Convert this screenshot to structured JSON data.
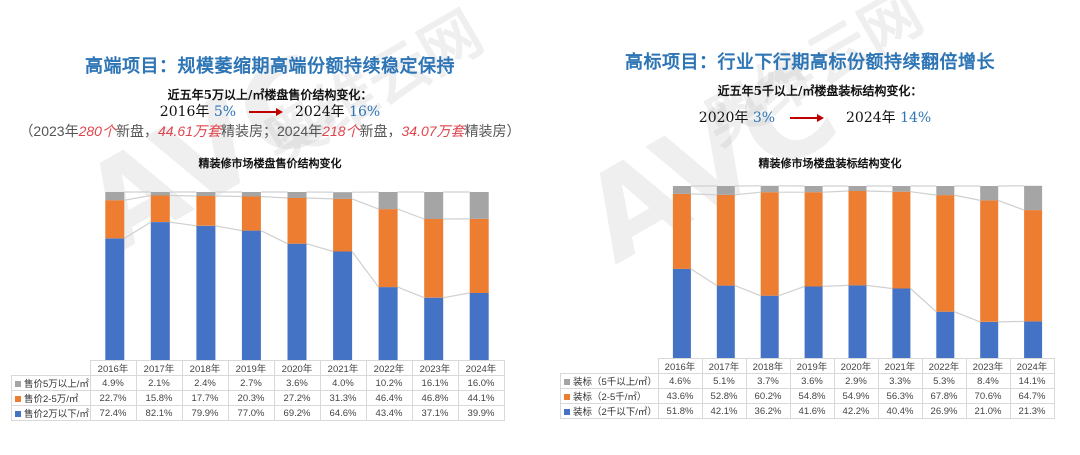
{
  "watermark": {
    "logo": "AVC",
    "text": "奥维云网",
    "sub": "ALL VIEW CLOUD"
  },
  "left": {
    "headline": "高端项目：规模萎缩期高端份额持续稳定保持",
    "question": "近五年5万以上/㎡楼盘售价结构变化：",
    "from_year": "2016年",
    "from_pct": "5%",
    "to_year": "2024年",
    "to_pct": "16%",
    "note": {
      "open": "（2023年",
      "n1": "280个",
      "t1": "新盘，",
      "n2": "44.61万套",
      "t2": "精装房；2024年",
      "n3": "218个",
      "t3": "新盘，",
      "n4": "34.07万套",
      "t4": "精装房）"
    },
    "chart_title": "精装修市场楼盘售价结构变化"
  },
  "right": {
    "headline": "高标项目：行业下行期高标份额持续翻倍增长",
    "question": "近五年5千以上/㎡楼盘装标结构变化：",
    "from_year": "2020年",
    "from_pct": "3%",
    "to_year": "2024年",
    "to_pct": "14%",
    "chart_title": "精装修市场楼盘装标结构变化"
  },
  "colors": {
    "gray": "#a5a5a5",
    "orange": "#ed7d31",
    "blue": "#4472c4",
    "connector": "#d0d0d0"
  },
  "chart_data": [
    {
      "type": "bar",
      "stacked": true,
      "percent_stacked": true,
      "title": "精装修市场楼盘售价结构变化",
      "categories": [
        "2016年",
        "2017年",
        "2018年",
        "2019年",
        "2020年",
        "2021年",
        "2022年",
        "2023年",
        "2024年"
      ],
      "series": [
        {
          "name": "售价5万以上/㎡",
          "color": "#a5a5a5",
          "values": [
            "4.9%",
            "2.1%",
            "2.4%",
            "2.7%",
            "3.6%",
            "4.0%",
            "10.2%",
            "16.1%",
            "16.0%"
          ]
        },
        {
          "name": "售价2-5万/㎡",
          "color": "#ed7d31",
          "values": [
            "22.7%",
            "15.8%",
            "17.7%",
            "20.3%",
            "27.2%",
            "31.3%",
            "46.4%",
            "46.8%",
            "44.1%"
          ]
        },
        {
          "name": "售价2万以下/㎡",
          "color": "#4472c4",
          "values": [
            "72.4%",
            "82.1%",
            "79.9%",
            "77.0%",
            "69.2%",
            "64.6%",
            "43.4%",
            "37.1%",
            "39.9%"
          ]
        }
      ],
      "ylim": [
        0,
        100
      ],
      "legend_position": "data-table"
    },
    {
      "type": "bar",
      "stacked": true,
      "percent_stacked": true,
      "title": "精装修市场楼盘装标结构变化",
      "categories": [
        "2016年",
        "2017年",
        "2018年",
        "2019年",
        "2020年",
        "2021年",
        "2022年",
        "2023年",
        "2024年"
      ],
      "series": [
        {
          "name": "装标（5千以上/㎡）",
          "color": "#a5a5a5",
          "values": [
            "4.6%",
            "5.1%",
            "3.7%",
            "3.6%",
            "2.9%",
            "3.3%",
            "5.3%",
            "8.4%",
            "14.1%"
          ]
        },
        {
          "name": "装标（2-5千/㎡）",
          "color": "#ed7d31",
          "values": [
            "43.6%",
            "52.8%",
            "60.2%",
            "54.8%",
            "54.9%",
            "56.3%",
            "67.8%",
            "70.6%",
            "64.7%"
          ]
        },
        {
          "name": "装标（2千以下/㎡）",
          "color": "#4472c4",
          "values": [
            "51.8%",
            "42.1%",
            "36.2%",
            "41.6%",
            "42.2%",
            "40.4%",
            "26.9%",
            "21.0%",
            "21.3%"
          ]
        }
      ],
      "ylim": [
        0,
        100
      ],
      "legend_position": "data-table"
    }
  ]
}
